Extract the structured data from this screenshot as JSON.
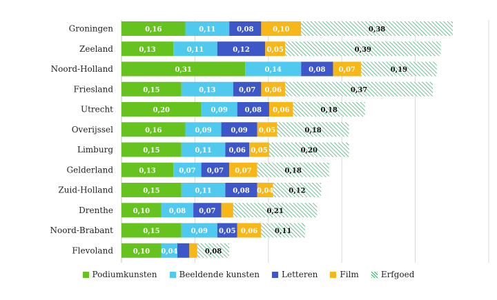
{
  "chart_data": {
    "type": "bar",
    "orientation": "horizontal",
    "stacked": true,
    "categories": [
      "Groningen",
      "Zeeland",
      "Noord-Holland",
      "Friesland",
      "Utrecht",
      "Overijssel",
      "Limburg",
      "Gelderland",
      "Zuid-Holland",
      "Drenthe",
      "Noord-Brabant",
      "Flevoland"
    ],
    "series": [
      {
        "name": "Podiumkunsten",
        "color": "#66c21f",
        "pattern": "solid",
        "values": [
          0.16,
          0.13,
          0.31,
          0.15,
          0.2,
          0.16,
          0.15,
          0.13,
          0.15,
          0.1,
          0.15,
          0.1
        ],
        "labels": [
          "0,16",
          "0,13",
          "0,31",
          "0,15",
          "0,20",
          "0,16",
          "0,15",
          "0,13",
          "0,15",
          "0,10",
          "0,15",
          "0,10"
        ]
      },
      {
        "name": "Beeldende kunsten",
        "color": "#4fc9ee",
        "pattern": "solid",
        "values": [
          0.11,
          0.11,
          0.14,
          0.13,
          0.09,
          0.09,
          0.11,
          0.07,
          0.11,
          0.08,
          0.09,
          0.04
        ],
        "labels": [
          "0,11",
          "0,11",
          "0,14",
          "0,13",
          "0,09",
          "0,09",
          "0,11",
          "0,07",
          "0,11",
          "0,08",
          "0,09",
          "0,04"
        ]
      },
      {
        "name": "Letteren",
        "color": "#3d57c8",
        "pattern": "solid",
        "values": [
          0.08,
          0.12,
          0.08,
          0.07,
          0.08,
          0.09,
          0.06,
          0.07,
          0.08,
          0.07,
          0.05,
          0.03
        ],
        "labels": [
          "0,08",
          "0,12",
          "0,08",
          "0,07",
          "0,08",
          "0,09",
          "0,06",
          "0,07",
          "0,08",
          "0,07",
          "0,05",
          ""
        ]
      },
      {
        "name": "Film",
        "color": "#f8b719",
        "pattern": "solid",
        "values": [
          0.1,
          0.05,
          0.07,
          0.06,
          0.06,
          0.05,
          0.05,
          0.07,
          0.04,
          0.03,
          0.06,
          0.02
        ],
        "labels": [
          "0,10",
          "0,05",
          "0,07",
          "0,06",
          "0,06",
          "0,05",
          "0,05",
          "0,07",
          "0,04",
          "",
          "0,06",
          ""
        ]
      },
      {
        "name": "Erfgoed",
        "color": "#2fa866",
        "pattern": "hatched",
        "values": [
          0.38,
          0.39,
          0.19,
          0.37,
          0.18,
          0.18,
          0.2,
          0.18,
          0.12,
          0.21,
          0.11,
          0.08
        ],
        "labels": [
          "0,38",
          "0,39",
          "0,19",
          "0,37",
          "0,18",
          "0,18",
          "0,20",
          "0,18",
          "0,12",
          "0,21",
          "0,11",
          "0,08"
        ]
      }
    ],
    "xlim": [
      0,
      0.92
    ],
    "grid": "vertical",
    "legend_position": "bottom"
  }
}
